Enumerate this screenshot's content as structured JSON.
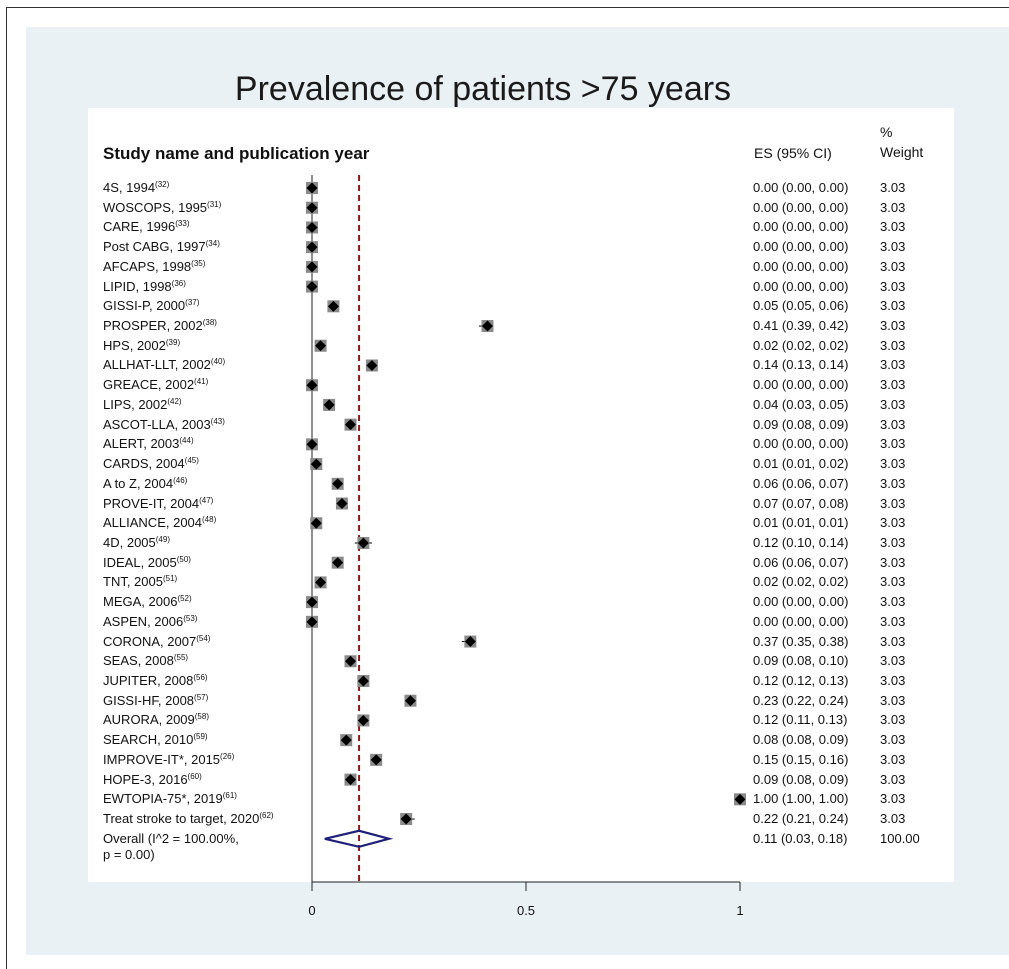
{
  "chart_data": {
    "type": "forest",
    "title": "Prevalence of patients >75 years",
    "column_headers": {
      "study": "Study name and publication year",
      "es": "ES (95% CI)",
      "weight_line1": "%",
      "weight_line2": "Weight"
    },
    "studies": [
      {
        "name": "4S, 1994",
        "ref": "(32)",
        "es": 0.0,
        "lo": 0.0,
        "hi": 0.0,
        "es_text": "0.00 (0.00, 0.00)",
        "weight": "3.03"
      },
      {
        "name": "WOSCOPS, 1995",
        "ref": "(31)",
        "es": 0.0,
        "lo": 0.0,
        "hi": 0.0,
        "es_text": "0.00 (0.00, 0.00)",
        "weight": "3.03"
      },
      {
        "name": "CARE, 1996",
        "ref": "(33)",
        "es": 0.0,
        "lo": 0.0,
        "hi": 0.0,
        "es_text": "0.00 (0.00, 0.00)",
        "weight": "3.03"
      },
      {
        "name": "Post CABG, 1997",
        "ref": "(34)",
        "es": 0.0,
        "lo": 0.0,
        "hi": 0.0,
        "es_text": "0.00 (0.00, 0.00)",
        "weight": "3.03"
      },
      {
        "name": "AFCAPS, 1998",
        "ref": "(35)",
        "es": 0.0,
        "lo": 0.0,
        "hi": 0.0,
        "es_text": "0.00 (0.00, 0.00)",
        "weight": "3.03"
      },
      {
        "name": "LIPID, 1998",
        "ref": "(36)",
        "es": 0.0,
        "lo": 0.0,
        "hi": 0.0,
        "es_text": "0.00 (0.00, 0.00)",
        "weight": "3.03"
      },
      {
        "name": "GISSI-P, 2000",
        "ref": "(37)",
        "es": 0.05,
        "lo": 0.05,
        "hi": 0.06,
        "es_text": "0.05 (0.05, 0.06)",
        "weight": "3.03"
      },
      {
        "name": "PROSPER, 2002",
        "ref": "(38)",
        "es": 0.41,
        "lo": 0.39,
        "hi": 0.42,
        "es_text": "0.41 (0.39, 0.42)",
        "weight": "3.03"
      },
      {
        "name": "HPS, 2002",
        "ref": "(39)",
        "es": 0.02,
        "lo": 0.02,
        "hi": 0.02,
        "es_text": "0.02 (0.02, 0.02)",
        "weight": "3.03"
      },
      {
        "name": "ALLHAT-LLT, 2002",
        "ref": "(40)",
        "es": 0.14,
        "lo": 0.13,
        "hi": 0.14,
        "es_text": "0.14 (0.13, 0.14)",
        "weight": "3.03"
      },
      {
        "name": "GREACE, 2002",
        "ref": "(41)",
        "es": 0.0,
        "lo": 0.0,
        "hi": 0.0,
        "es_text": "0.00 (0.00, 0.00)",
        "weight": "3.03"
      },
      {
        "name": "LIPS, 2002",
        "ref": "(42)",
        "es": 0.04,
        "lo": 0.03,
        "hi": 0.05,
        "es_text": "0.04 (0.03, 0.05)",
        "weight": "3.03"
      },
      {
        "name": "ASCOT-LLA, 2003",
        "ref": "(43)",
        "es": 0.09,
        "lo": 0.08,
        "hi": 0.09,
        "es_text": "0.09 (0.08, 0.09)",
        "weight": "3.03"
      },
      {
        "name": "ALERT, 2003",
        "ref": "(44)",
        "es": 0.0,
        "lo": 0.0,
        "hi": 0.0,
        "es_text": "0.00 (0.00, 0.00)",
        "weight": "3.03"
      },
      {
        "name": "CARDS, 2004",
        "ref": "(45)",
        "es": 0.01,
        "lo": 0.01,
        "hi": 0.02,
        "es_text": "0.01 (0.01, 0.02)",
        "weight": "3.03"
      },
      {
        "name": "A to Z, 2004",
        "ref": "(46)",
        "es": 0.06,
        "lo": 0.06,
        "hi": 0.07,
        "es_text": "0.06 (0.06, 0.07)",
        "weight": "3.03"
      },
      {
        "name": "PROVE-IT, 2004",
        "ref": "(47)",
        "es": 0.07,
        "lo": 0.07,
        "hi": 0.08,
        "es_text": "0.07 (0.07, 0.08)",
        "weight": "3.03"
      },
      {
        "name": "ALLIANCE, 2004",
        "ref": "(48)",
        "es": 0.01,
        "lo": 0.01,
        "hi": 0.01,
        "es_text": "0.01 (0.01, 0.01)",
        "weight": "3.03"
      },
      {
        "name": "4D, 2005",
        "ref": "(49)",
        "es": 0.12,
        "lo": 0.1,
        "hi": 0.14,
        "es_text": "0.12 (0.10, 0.14)",
        "weight": "3.03"
      },
      {
        "name": "IDEAL, 2005",
        "ref": "(50)",
        "es": 0.06,
        "lo": 0.06,
        "hi": 0.07,
        "es_text": "0.06 (0.06, 0.07)",
        "weight": "3.03"
      },
      {
        "name": "TNT, 2005",
        "ref": "(51)",
        "es": 0.02,
        "lo": 0.02,
        "hi": 0.02,
        "es_text": "0.02 (0.02, 0.02)",
        "weight": "3.03"
      },
      {
        "name": "MEGA, 2006",
        "ref": "(52)",
        "es": 0.0,
        "lo": 0.0,
        "hi": 0.0,
        "es_text": "0.00 (0.00, 0.00)",
        "weight": "3.03"
      },
      {
        "name": "ASPEN, 2006",
        "ref": "(53)",
        "es": 0.0,
        "lo": 0.0,
        "hi": 0.0,
        "es_text": "0.00 (0.00, 0.00)",
        "weight": "3.03"
      },
      {
        "name": "CORONA, 2007",
        "ref": "(54)",
        "es": 0.37,
        "lo": 0.35,
        "hi": 0.38,
        "es_text": "0.37 (0.35, 0.38)",
        "weight": "3.03"
      },
      {
        "name": "SEAS, 2008",
        "ref": "(55)",
        "es": 0.09,
        "lo": 0.08,
        "hi": 0.1,
        "es_text": "0.09 (0.08, 0.10)",
        "weight": "3.03"
      },
      {
        "name": "JUPITER, 2008",
        "ref": "(56)",
        "es": 0.12,
        "lo": 0.12,
        "hi": 0.13,
        "es_text": "0.12 (0.12, 0.13)",
        "weight": "3.03"
      },
      {
        "name": "GISSI-HF, 2008",
        "ref": "(57)",
        "es": 0.23,
        "lo": 0.22,
        "hi": 0.24,
        "es_text": "0.23 (0.22, 0.24)",
        "weight": "3.03"
      },
      {
        "name": "AURORA, 2009",
        "ref": "(58)",
        "es": 0.12,
        "lo": 0.11,
        "hi": 0.13,
        "es_text": "0.12 (0.11, 0.13)",
        "weight": "3.03"
      },
      {
        "name": "SEARCH, 2010",
        "ref": "(59)",
        "es": 0.08,
        "lo": 0.08,
        "hi": 0.09,
        "es_text": "0.08 (0.08, 0.09)",
        "weight": "3.03"
      },
      {
        "name": "IMPROVE-IT*, 2015",
        "ref": "(26)",
        "es": 0.15,
        "lo": 0.15,
        "hi": 0.16,
        "es_text": "0.15 (0.15, 0.16)",
        "weight": "3.03"
      },
      {
        "name": "HOPE-3, 2016",
        "ref": "(60)",
        "es": 0.09,
        "lo": 0.08,
        "hi": 0.09,
        "es_text": "0.09 (0.08, 0.09)",
        "weight": "3.03"
      },
      {
        "name": "EWTOPIA-75*, 2019",
        "ref": "(61)",
        "es": 1.0,
        "lo": 1.0,
        "hi": 1.0,
        "es_text": "1.00 (1.00, 1.00)",
        "weight": "3.03"
      },
      {
        "name": "Treat stroke to target, 2020",
        "ref": "(62)",
        "es": 0.22,
        "lo": 0.21,
        "hi": 0.24,
        "es_text": "0.22 (0.21, 0.24)",
        "weight": "3.03"
      }
    ],
    "overall": {
      "label_line1": "Overall  (I^2 = 100.00%,",
      "label_line2": "p = 0.00)",
      "es": 0.11,
      "lo": 0.03,
      "hi": 0.18,
      "es_text": "0.11 (0.03, 0.18)",
      "weight": "100.00"
    },
    "xlim": [
      0,
      1
    ],
    "x_ticks": [
      {
        "value": 0,
        "label": "0"
      },
      {
        "value": 0.5,
        "label": "0.5"
      },
      {
        "value": 1,
        "label": "1"
      }
    ],
    "reference_line": 0.11,
    "colors": {
      "marker": "#000000",
      "diamond": "#1f1f7a",
      "reference_line": "#8b1a1a",
      "panel_bg": "#e9f1f5",
      "plot_bg": "#ffffff"
    }
  }
}
